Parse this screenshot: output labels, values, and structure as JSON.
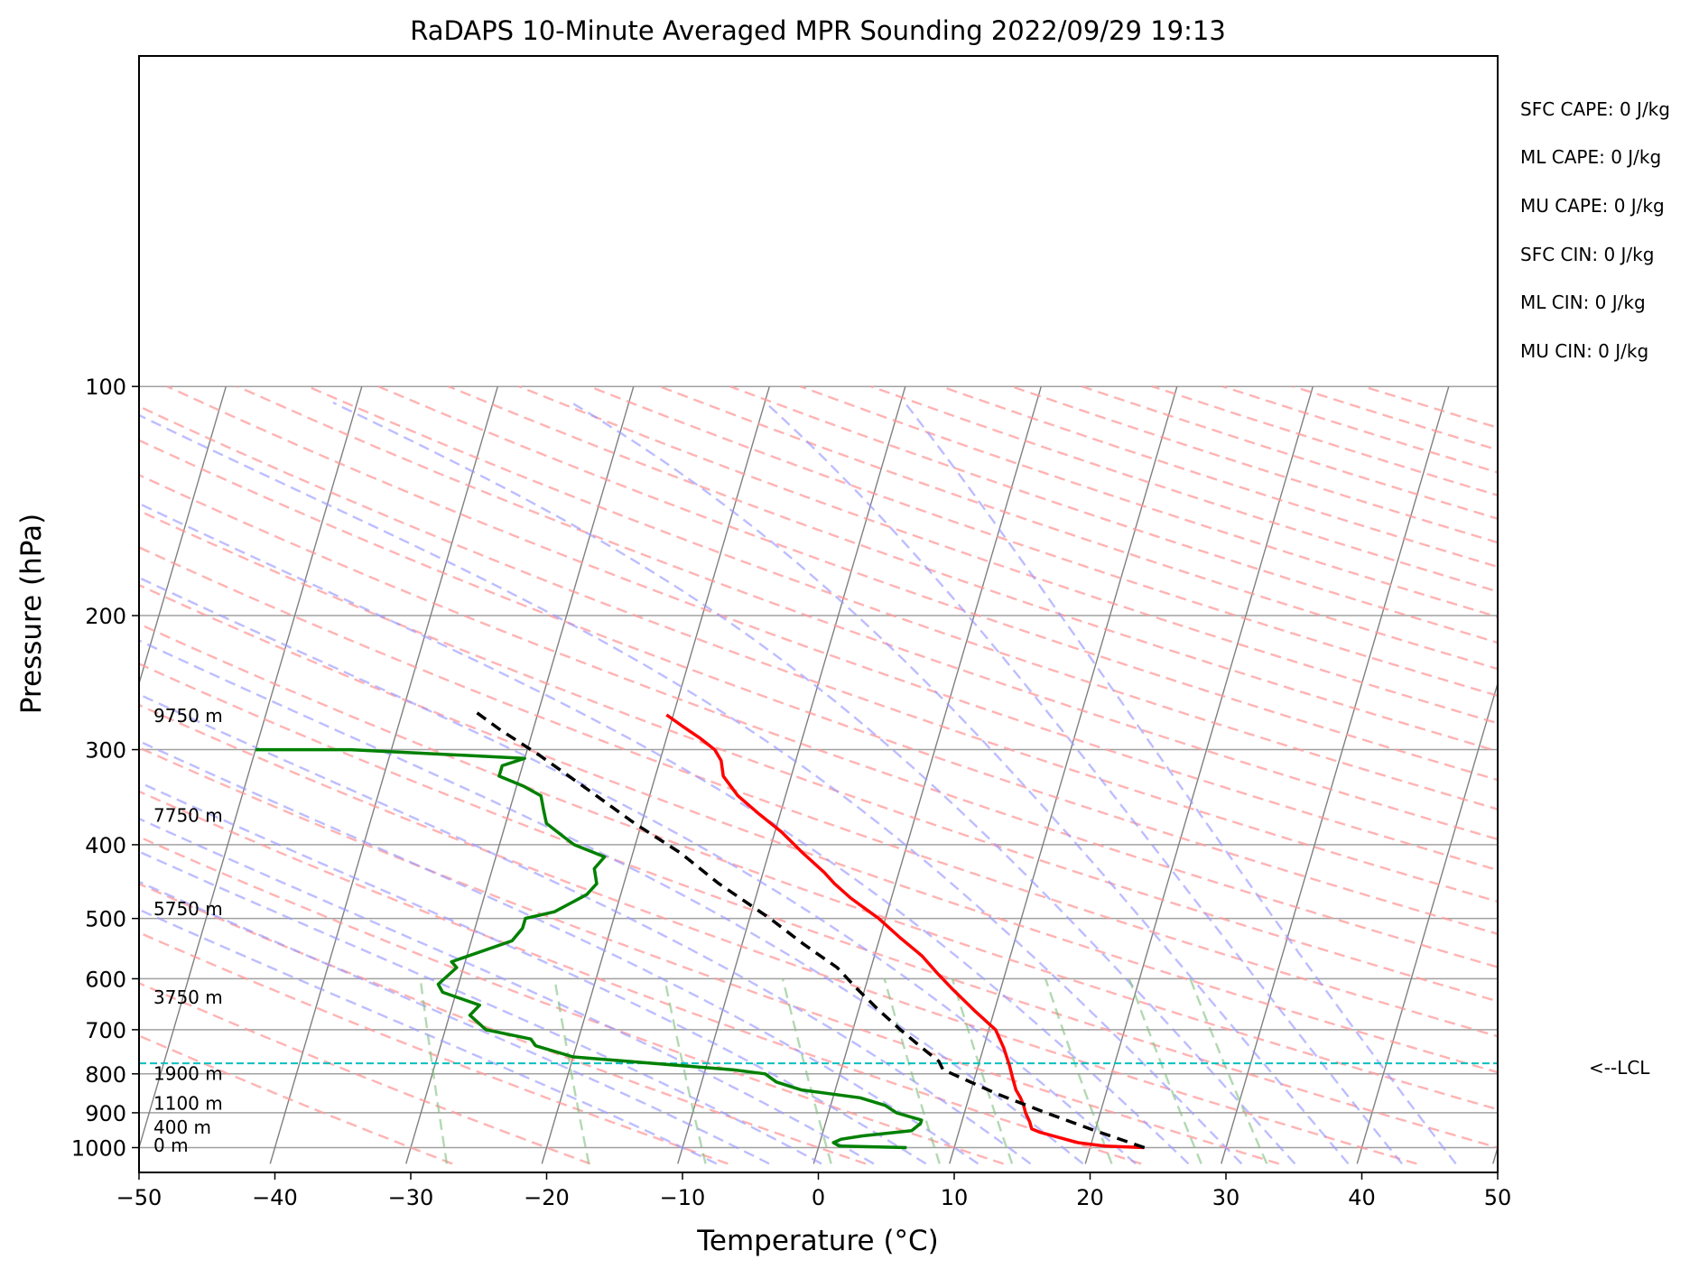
{
  "chart_data": {
    "type": "line",
    "chart_kind": "skew-T log-p sounding",
    "title": "RaDAPS 10-Minute Averaged MPR Sounding 2022/09/29 19:13",
    "xlabel": "Temperature (°C)",
    "ylabel": "Pressure (hPa)",
    "xlim": [
      -50,
      50
    ],
    "ylim": [
      1050,
      100
    ],
    "y_scale": "log",
    "skew": "isotherms slanted toward upper right",
    "x_ticks": [
      "−50",
      "−40",
      "−30",
      "−20",
      "−10",
      "0",
      "10",
      "20",
      "30",
      "40",
      "50"
    ],
    "y_ticks": [
      "100",
      "200",
      "300",
      "400",
      "500",
      "600",
      "700",
      "800",
      "900",
      "1000"
    ],
    "grid": true,
    "colors": {
      "temperature": "#ff0000",
      "dewpoint": "#008000",
      "parcel": "#000000",
      "lcl": "#00bfbf",
      "dry_adiabats": "#ff9999",
      "moist_adiabats": "#9999ff",
      "mixing_ratio": "#7fbf7f",
      "isotherms": "#808080",
      "isobars": "#a0a0a0"
    },
    "series": [
      {
        "key": "temperature",
        "points": [
          [
            24.0,
            1000
          ],
          [
            21.0,
            995
          ],
          [
            19.0,
            985
          ],
          [
            17.5,
            970
          ],
          [
            16.0,
            955
          ],
          [
            15.3,
            945
          ],
          [
            15.0,
            925
          ],
          [
            14.5,
            900
          ],
          [
            14.2,
            880
          ],
          [
            13.8,
            860
          ],
          [
            13.3,
            840
          ],
          [
            12.8,
            810
          ],
          [
            12.3,
            780
          ],
          [
            11.5,
            740
          ],
          [
            10.5,
            700
          ],
          [
            8.5,
            660
          ],
          [
            6.5,
            620
          ],
          [
            5.0,
            590
          ],
          [
            3.5,
            560
          ],
          [
            1.5,
            530
          ],
          [
            -0.5,
            500
          ],
          [
            -3.0,
            470
          ],
          [
            -4.5,
            450
          ],
          [
            -5.5,
            435
          ],
          [
            -7.5,
            410
          ],
          [
            -9.5,
            385
          ],
          [
            -11.5,
            365
          ],
          [
            -13.5,
            345
          ],
          [
            -15.0,
            325
          ],
          [
            -15.5,
            310
          ],
          [
            -16.2,
            300
          ],
          [
            -17.5,
            290
          ],
          [
            -19.0,
            280
          ],
          [
            -20.5,
            270
          ]
        ]
      },
      {
        "key": "dewpoint",
        "points": [
          [
            6.5,
            1000
          ],
          [
            1.5,
            995
          ],
          [
            1.0,
            985
          ],
          [
            1.5,
            975
          ],
          [
            3.0,
            965
          ],
          [
            6.5,
            950
          ],
          [
            7.0,
            930
          ],
          [
            7.0,
            920
          ],
          [
            5.0,
            900
          ],
          [
            4.0,
            880
          ],
          [
            2.0,
            860
          ],
          [
            -2.5,
            840
          ],
          [
            -4.5,
            820
          ],
          [
            -5.5,
            800
          ],
          [
            -8.0,
            790
          ],
          [
            -14.0,
            775
          ],
          [
            -20.0,
            760
          ],
          [
            -23.0,
            735
          ],
          [
            -23.5,
            720
          ],
          [
            -27.0,
            700
          ],
          [
            -28.5,
            670
          ],
          [
            -28.0,
            650
          ],
          [
            -31.0,
            625
          ],
          [
            -31.5,
            610
          ],
          [
            -30.5,
            580
          ],
          [
            -31.0,
            570
          ],
          [
            -27.0,
            535
          ],
          [
            -26.5,
            515
          ],
          [
            -26.5,
            500
          ],
          [
            -24.5,
            490
          ],
          [
            -22.5,
            465
          ],
          [
            -22.0,
            450
          ],
          [
            -22.5,
            430
          ],
          [
            -22.0,
            415
          ],
          [
            -24.5,
            400
          ],
          [
            -25.5,
            390
          ],
          [
            -27.0,
            375
          ],
          [
            -27.5,
            360
          ],
          [
            -28.0,
            345
          ],
          [
            -29.5,
            335
          ],
          [
            -31.5,
            325
          ],
          [
            -31.5,
            315
          ],
          [
            -30.0,
            308
          ],
          [
            -43.0,
            300
          ],
          [
            -50.0,
            300
          ]
        ]
      },
      {
        "key": "parcel",
        "points": [
          [
            24.0,
            1000
          ],
          [
            20.0,
            950
          ],
          [
            16.0,
            900
          ],
          [
            12.0,
            850
          ],
          [
            7.5,
            790
          ],
          [
            7.0,
            770
          ],
          [
            5.5,
            740
          ],
          [
            3.5,
            700
          ],
          [
            1.5,
            660
          ],
          [
            -0.5,
            620
          ],
          [
            -2.5,
            580
          ],
          [
            -5.5,
            540
          ],
          [
            -8.5,
            500
          ],
          [
            -13.0,
            450
          ],
          [
            -16.5,
            410
          ],
          [
            -20.5,
            375
          ],
          [
            -24.5,
            340
          ],
          [
            -29.0,
            305
          ],
          [
            -32.5,
            282
          ],
          [
            -35.0,
            265
          ]
        ]
      }
    ],
    "lcl_pressure": 775,
    "lcl_label": "<--LCL",
    "height_labels": [
      {
        "text": "9750 m",
        "p": 276
      },
      {
        "text": "7750 m",
        "p": 373
      },
      {
        "text": "5750 m",
        "p": 495
      },
      {
        "text": "3750 m",
        "p": 647
      },
      {
        "text": "1900 m",
        "p": 815
      },
      {
        "text": "1100 m",
        "p": 892
      },
      {
        "text": "400 m",
        "p": 958
      },
      {
        "text": "0 m",
        "p": 1012
      }
    ],
    "stats": [
      "SFC CAPE: 0 J/kg",
      "ML CAPE: 0 J/kg",
      "MU CAPE: 0 J/kg",
      "SFC CIN: 0 J/kg",
      "ML CIN: 0 J/kg",
      "MU CIN: 0 J/kg"
    ]
  }
}
